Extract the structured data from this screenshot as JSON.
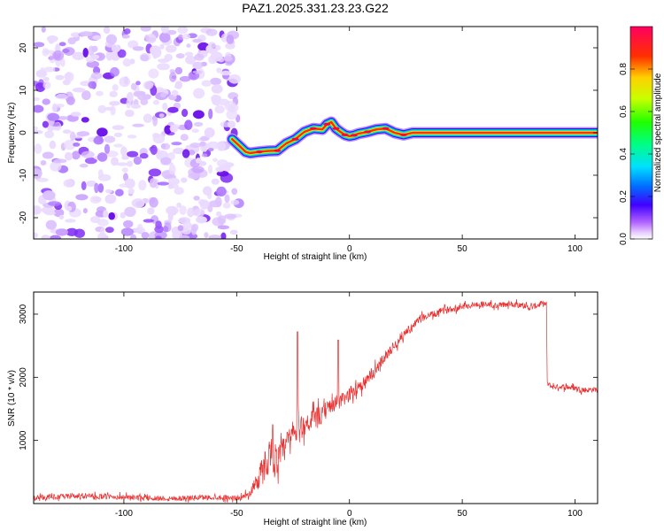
{
  "title": "PAZ1.2025.331.23.23.G22",
  "chart_data": [
    {
      "type": "heatmap",
      "name": "spectrogram",
      "xlabel": "Height of straight line (km)",
      "ylabel": "Frequency (Hz)",
      "xlim": [
        -140,
        110
      ],
      "ylim": [
        -25,
        25
      ],
      "xticks": [
        -100,
        -50,
        0,
        50,
        100
      ],
      "xtick_labels": [
        "-100",
        "-50",
        "0",
        "50",
        "100"
      ],
      "yticks": [
        -20,
        -10,
        0,
        10,
        20
      ],
      "ytick_labels": [
        "-20",
        "-10",
        "0",
        "10",
        "20"
      ],
      "noise_region_x": [
        -140,
        -50
      ],
      "ridge": {
        "x": [
          -52,
          -49,
          -46,
          -44,
          -40,
          -36,
          -32,
          -28,
          -24,
          -20,
          -16,
          -12,
          -10,
          -8,
          -6,
          -4,
          -2,
          0,
          2,
          4,
          8,
          12,
          16,
          20,
          24,
          28,
          110
        ],
        "y": [
          -1.5,
          -3,
          -4.5,
          -4.8,
          -4.5,
          -4.3,
          -4.2,
          -2.5,
          -1.5,
          0.2,
          1,
          0.8,
          2,
          2.5,
          1,
          0.2,
          -0.5,
          -0.8,
          -0.6,
          -0.2,
          0.2,
          0.8,
          1,
          0,
          -0.5,
          0,
          0
        ]
      },
      "colorbar": {
        "label": "Normalized spectral amplitude",
        "range": [
          0,
          1
        ],
        "ticks": [
          0.0,
          0.2,
          0.4,
          0.6,
          0.8
        ],
        "tick_labels": [
          "0.0",
          "0.2",
          "0.4",
          "0.6",
          "0.8"
        ]
      }
    },
    {
      "type": "line",
      "name": "snr",
      "xlabel": "Height of straight line (km)",
      "ylabel": "SNR (10 * v/v)",
      "xlim": [
        -140,
        110
      ],
      "ylim": [
        0,
        3350
      ],
      "xticks": [
        -100,
        -50,
        0,
        50,
        100
      ],
      "xtick_labels": [
        "-100",
        "-50",
        "0",
        "50",
        "100"
      ],
      "yticks": [
        1000,
        2000,
        3000
      ],
      "ytick_labels": [
        "1000",
        "2000",
        "3000"
      ],
      "series": [
        {
          "name": "SNR",
          "color": "#e83030",
          "x": [
            -140,
            -120,
            -100,
            -80,
            -60,
            -48,
            -44,
            -42,
            -40,
            -38,
            -35,
            -32,
            -30,
            -28,
            -25,
            -22,
            -20,
            -18,
            -15,
            -12,
            -10,
            -8,
            -5,
            -2,
            0,
            2,
            5,
            8,
            10,
            12,
            15,
            18,
            20,
            22,
            25,
            28,
            30,
            32,
            35,
            38,
            40,
            45,
            50,
            55,
            60,
            65,
            70,
            75,
            80,
            84,
            86,
            87.4,
            87.6,
            90,
            95,
            100,
            105,
            110
          ],
          "y": [
            90,
            120,
            100,
            80,
            100,
            90,
            160,
            330,
            420,
            560,
            820,
            660,
            780,
            940,
            1100,
            1160,
            1260,
            1300,
            1340,
            1400,
            1500,
            1560,
            1600,
            1660,
            1730,
            1800,
            1880,
            1950,
            2040,
            2130,
            2300,
            2420,
            2500,
            2600,
            2720,
            2800,
            2870,
            2940,
            2980,
            3000,
            3040,
            3080,
            3120,
            3150,
            3160,
            3130,
            3160,
            3160,
            3100,
            3150,
            3170,
            3150,
            1900,
            1850,
            1850,
            1830,
            1800,
            1810
          ],
          "noise_amplitude": [
            60,
            60,
            60,
            60,
            60,
            60,
            80,
            200,
            300,
            350,
            400,
            350,
            350,
            300,
            300,
            300,
            250,
            250,
            250,
            200,
            200,
            180,
            180,
            180,
            160,
            160,
            150,
            150,
            140,
            140,
            120,
            120,
            110,
            110,
            100,
            100,
            90,
            90,
            80,
            80,
            80,
            70,
            70,
            70,
            70,
            70,
            70,
            70,
            70,
            70,
            70,
            70,
            60,
            60,
            60,
            60,
            60,
            60
          ],
          "spikes": [
            {
              "x": -23,
              "y": 2720
            },
            {
              "x": -5,
              "y": 2590
            },
            {
              "x": -34,
              "y": 1250
            }
          ]
        }
      ]
    }
  ]
}
